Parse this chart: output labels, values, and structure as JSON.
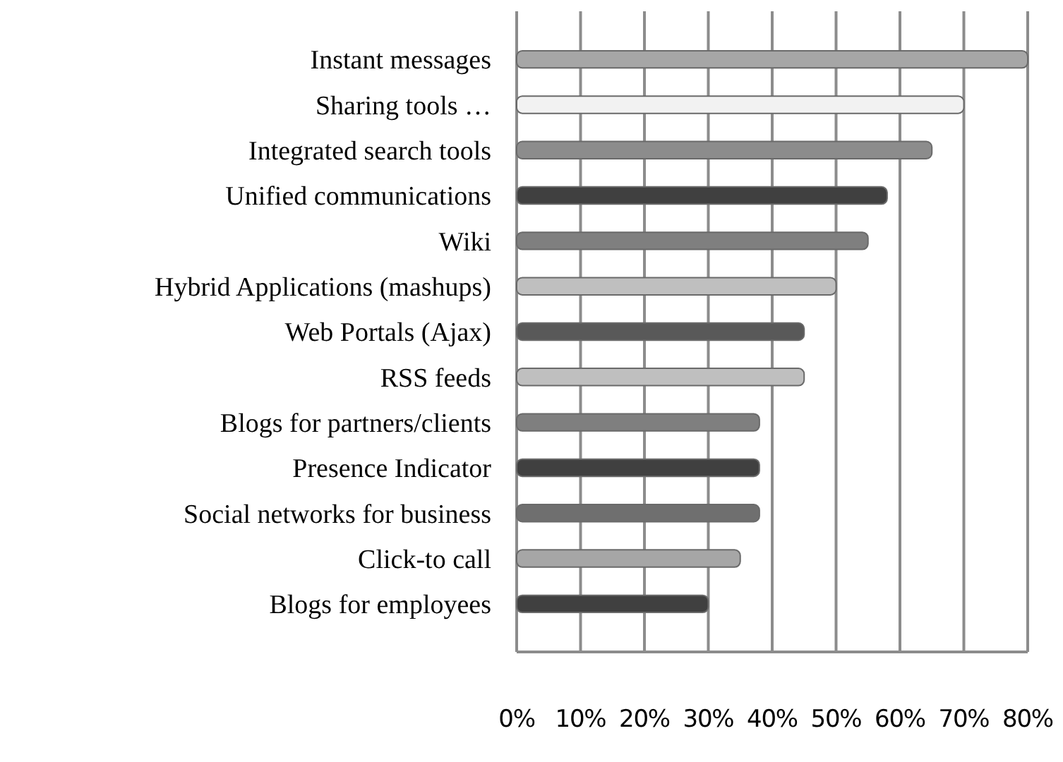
{
  "chart_data": {
    "type": "bar",
    "orientation": "horizontal",
    "categories": [
      "Instant messages",
      "Sharing tools …",
      "Integrated search tools",
      "Unified communications",
      "Wiki",
      "Hybrid Applications (mashups)",
      "Web Portals (Ajax)",
      "RSS feeds",
      "Blogs for partners/clients",
      "Presence Indicator",
      "Social networks for business",
      "Click-to call",
      "Blogs for employees"
    ],
    "values": [
      80,
      70,
      65,
      58,
      55,
      50,
      45,
      45,
      38,
      38,
      38,
      35,
      30
    ],
    "colors": [
      "#a6a6a6",
      "#f2f2f2",
      "#8c8c8c",
      "#404040",
      "#7f7f7f",
      "#bfbfbf",
      "#595959",
      "#bfbfbf",
      "#7f7f7f",
      "#404040",
      "#6f6f6f",
      "#a6a6a6",
      "#404040"
    ],
    "xlim": [
      0,
      80
    ],
    "xticks": [
      {
        "value": 0,
        "label": "0%"
      },
      {
        "value": 10,
        "label": "10%"
      },
      {
        "value": 20,
        "label": "20%"
      },
      {
        "value": 30,
        "label": "30%"
      },
      {
        "value": 40,
        "label": "40%"
      },
      {
        "value": 50,
        "label": "50%"
      },
      {
        "value": 60,
        "label": "60%"
      },
      {
        "value": 70,
        "label": "70%"
      },
      {
        "value": 80,
        "label": "80%"
      }
    ],
    "grid": "x"
  }
}
